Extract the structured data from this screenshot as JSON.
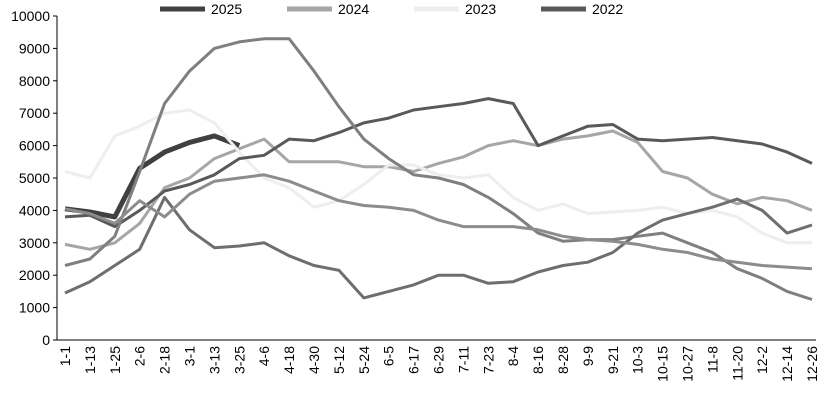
{
  "chart_data": {
    "type": "line",
    "categories": [
      "1-1",
      "1-13",
      "1-25",
      "2-6",
      "2-18",
      "3-1",
      "3-13",
      "3-25",
      "4-6",
      "4-18",
      "4-30",
      "5-12",
      "5-24",
      "6-5",
      "6-17",
      "6-29",
      "7-11",
      "7-23",
      "8-4",
      "8-16",
      "8-28",
      "9-9",
      "9-21",
      "10-3",
      "10-15",
      "10-27",
      "11-8",
      "11-20",
      "12-2",
      "12-14",
      "12-26"
    ],
    "ylim": [
      0,
      10000
    ],
    "yticks": [
      0,
      1000,
      2000,
      3000,
      4000,
      5000,
      6000,
      7000,
      8000,
      9000,
      10000
    ],
    "legend": "top",
    "series": [
      {
        "name": "2025",
        "color": "#404040",
        "width": 5,
        "values": [
          4050,
          3950,
          3800,
          5300,
          5800,
          6100,
          6300,
          6000,
          null,
          null,
          null,
          null,
          null,
          null,
          null,
          null,
          null,
          null,
          null,
          null,
          null,
          null,
          null,
          null,
          null,
          null,
          null,
          null,
          null,
          null,
          null
        ]
      },
      {
        "name": "2024",
        "color": "#a6a6a6",
        "width": 3,
        "values": [
          2950,
          2800,
          3000,
          3600,
          4700,
          5000,
          5600,
          5900,
          6200,
          5500,
          5500,
          5500,
          5350,
          5350,
          5200,
          5450,
          5650,
          6000,
          6150,
          6000,
          6200,
          6300,
          6450,
          6100,
          5200,
          5000,
          4500,
          4200,
          4400,
          4300,
          4000
        ]
      },
      {
        "name": "2023",
        "color": "#eeeeee",
        "width": 3,
        "values": [
          5200,
          5000,
          6300,
          6600,
          7000,
          7100,
          6700,
          5800,
          5000,
          4700,
          4100,
          4300,
          4800,
          5400,
          5400,
          5100,
          5000,
          5100,
          4400,
          4000,
          4200,
          3900,
          3950,
          4000,
          4100,
          3900,
          4000,
          3800,
          3300,
          3000,
          3000
        ]
      },
      {
        "name": "2022",
        "color": "#595959",
        "width": 3,
        "values": [
          3800,
          3850,
          3500,
          4000,
          4600,
          4800,
          5100,
          5600,
          5700,
          6200,
          6150,
          6400,
          6700,
          6850,
          7100,
          7200,
          7300,
          7450,
          7300,
          6000,
          6300,
          6600,
          6650,
          6200,
          6150,
          6200,
          6250,
          6150,
          6050,
          5800,
          5450
        ]
      },
      {
        "color": "#7f7f7f",
        "width": 3,
        "values": [
          2300,
          2500,
          3200,
          5200,
          7300,
          8300,
          9000,
          9200,
          9300,
          9300,
          8300,
          7200,
          6200,
          5600,
          5100,
          5000,
          4800,
          4400,
          3900,
          3300,
          3050,
          3100,
          3100,
          3200,
          3300,
          3000,
          2700,
          2200,
          1900,
          1500,
          1250
        ]
      },
      {
        "color": "#6e6e6e",
        "width": 3,
        "values": [
          1450,
          1800,
          2300,
          2800,
          4400,
          3400,
          2850,
          2900,
          3000,
          2600,
          2300,
          2150,
          1300,
          1500,
          1700,
          2000,
          2000,
          1750,
          1800,
          2100,
          2300,
          2400,
          2700,
          3300,
          3700,
          3900,
          4100,
          4350,
          4000,
          3300,
          3550
        ]
      },
      {
        "color": "#8c8c8c",
        "width": 3,
        "values": [
          4050,
          3900,
          3600,
          4300,
          3800,
          4500,
          4900,
          5000,
          5100,
          4900,
          4600,
          4300,
          4150,
          4100,
          4000,
          3700,
          3500,
          3500,
          3500,
          3400,
          3200,
          3100,
          3050,
          2950,
          2800,
          2700,
          2500,
          2400,
          2300,
          2250,
          2200
        ]
      }
    ]
  }
}
